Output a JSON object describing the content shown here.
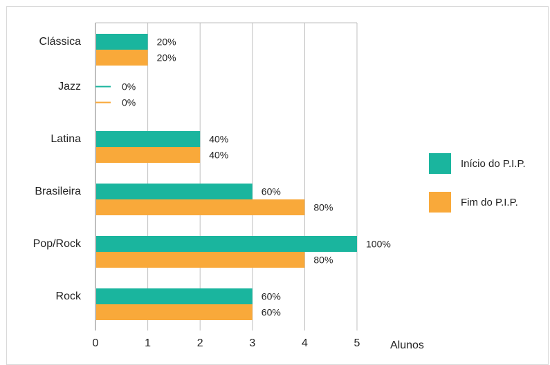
{
  "chart_data": {
    "type": "bar",
    "orientation": "horizontal",
    "categories": [
      "Clássica",
      "Jazz",
      "Latina",
      "Brasileira",
      "Pop/Rock",
      "Rock"
    ],
    "series": [
      {
        "name": "Início do P.I.P.",
        "color": "#1ab59e",
        "values": [
          1,
          0,
          2,
          3,
          5,
          3
        ],
        "labels": [
          "20%",
          "0%",
          "40%",
          "60%",
          "100%",
          "60%"
        ]
      },
      {
        "name": "Fim do P.I.P.",
        "color": "#f9a93a",
        "values": [
          1,
          0,
          2,
          4,
          4,
          3
        ],
        "labels": [
          "20%",
          "0%",
          "40%",
          "80%",
          "80%",
          "60%"
        ]
      }
    ],
    "xlabel": "Alunos",
    "xlim": [
      0,
      5
    ],
    "xticks": [
      "0",
      "1",
      "2",
      "3",
      "4",
      "5"
    ],
    "grid": true,
    "legend_position": "right"
  }
}
